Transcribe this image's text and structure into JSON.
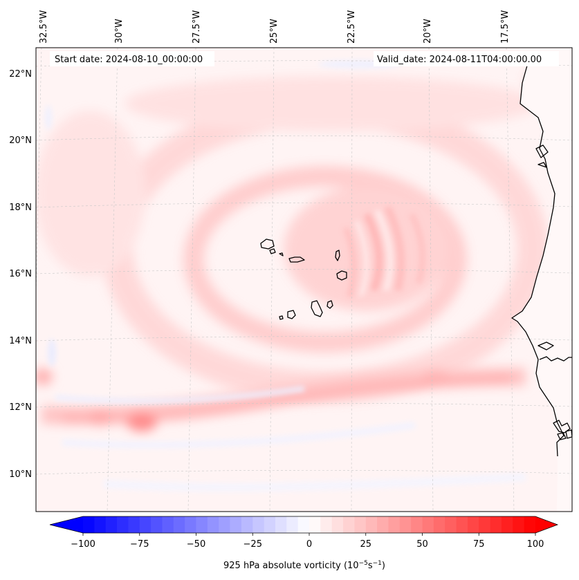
{
  "map": {
    "projection": "lambert-conformal",
    "start_date_text": "Start date: 2024-08-10_00:00:00",
    "valid_date_text": "Valid_date: 2024-08-11T04:00:00.00",
    "lon_labels": [
      "32.5°W",
      "30°W",
      "27.5°W",
      "25°W",
      "22.5°W",
      "20°W",
      "17.5°W"
    ],
    "lat_labels": [
      "22°N",
      "20°N",
      "18°N",
      "16°N",
      "14°N",
      "12°N",
      "10°N"
    ],
    "field": "925 hPa absolute vorticity",
    "gridlines": true
  },
  "colorbar": {
    "label_prefix": "925 hPa absolute vorticity (10",
    "label_exp1": "−5",
    "label_mid": "s",
    "label_exp2": "−1",
    "label_suffix": ")",
    "ticks": [
      "−100",
      "−75",
      "−50",
      "−25",
      "0",
      "25",
      "50",
      "75",
      "100"
    ],
    "range": [
      -100,
      100
    ],
    "levels": 40,
    "colormap": "bwr",
    "extend": "both",
    "low_color": "#0000ff",
    "mid_color": "#ffffff",
    "high_color": "#ff0000"
  }
}
